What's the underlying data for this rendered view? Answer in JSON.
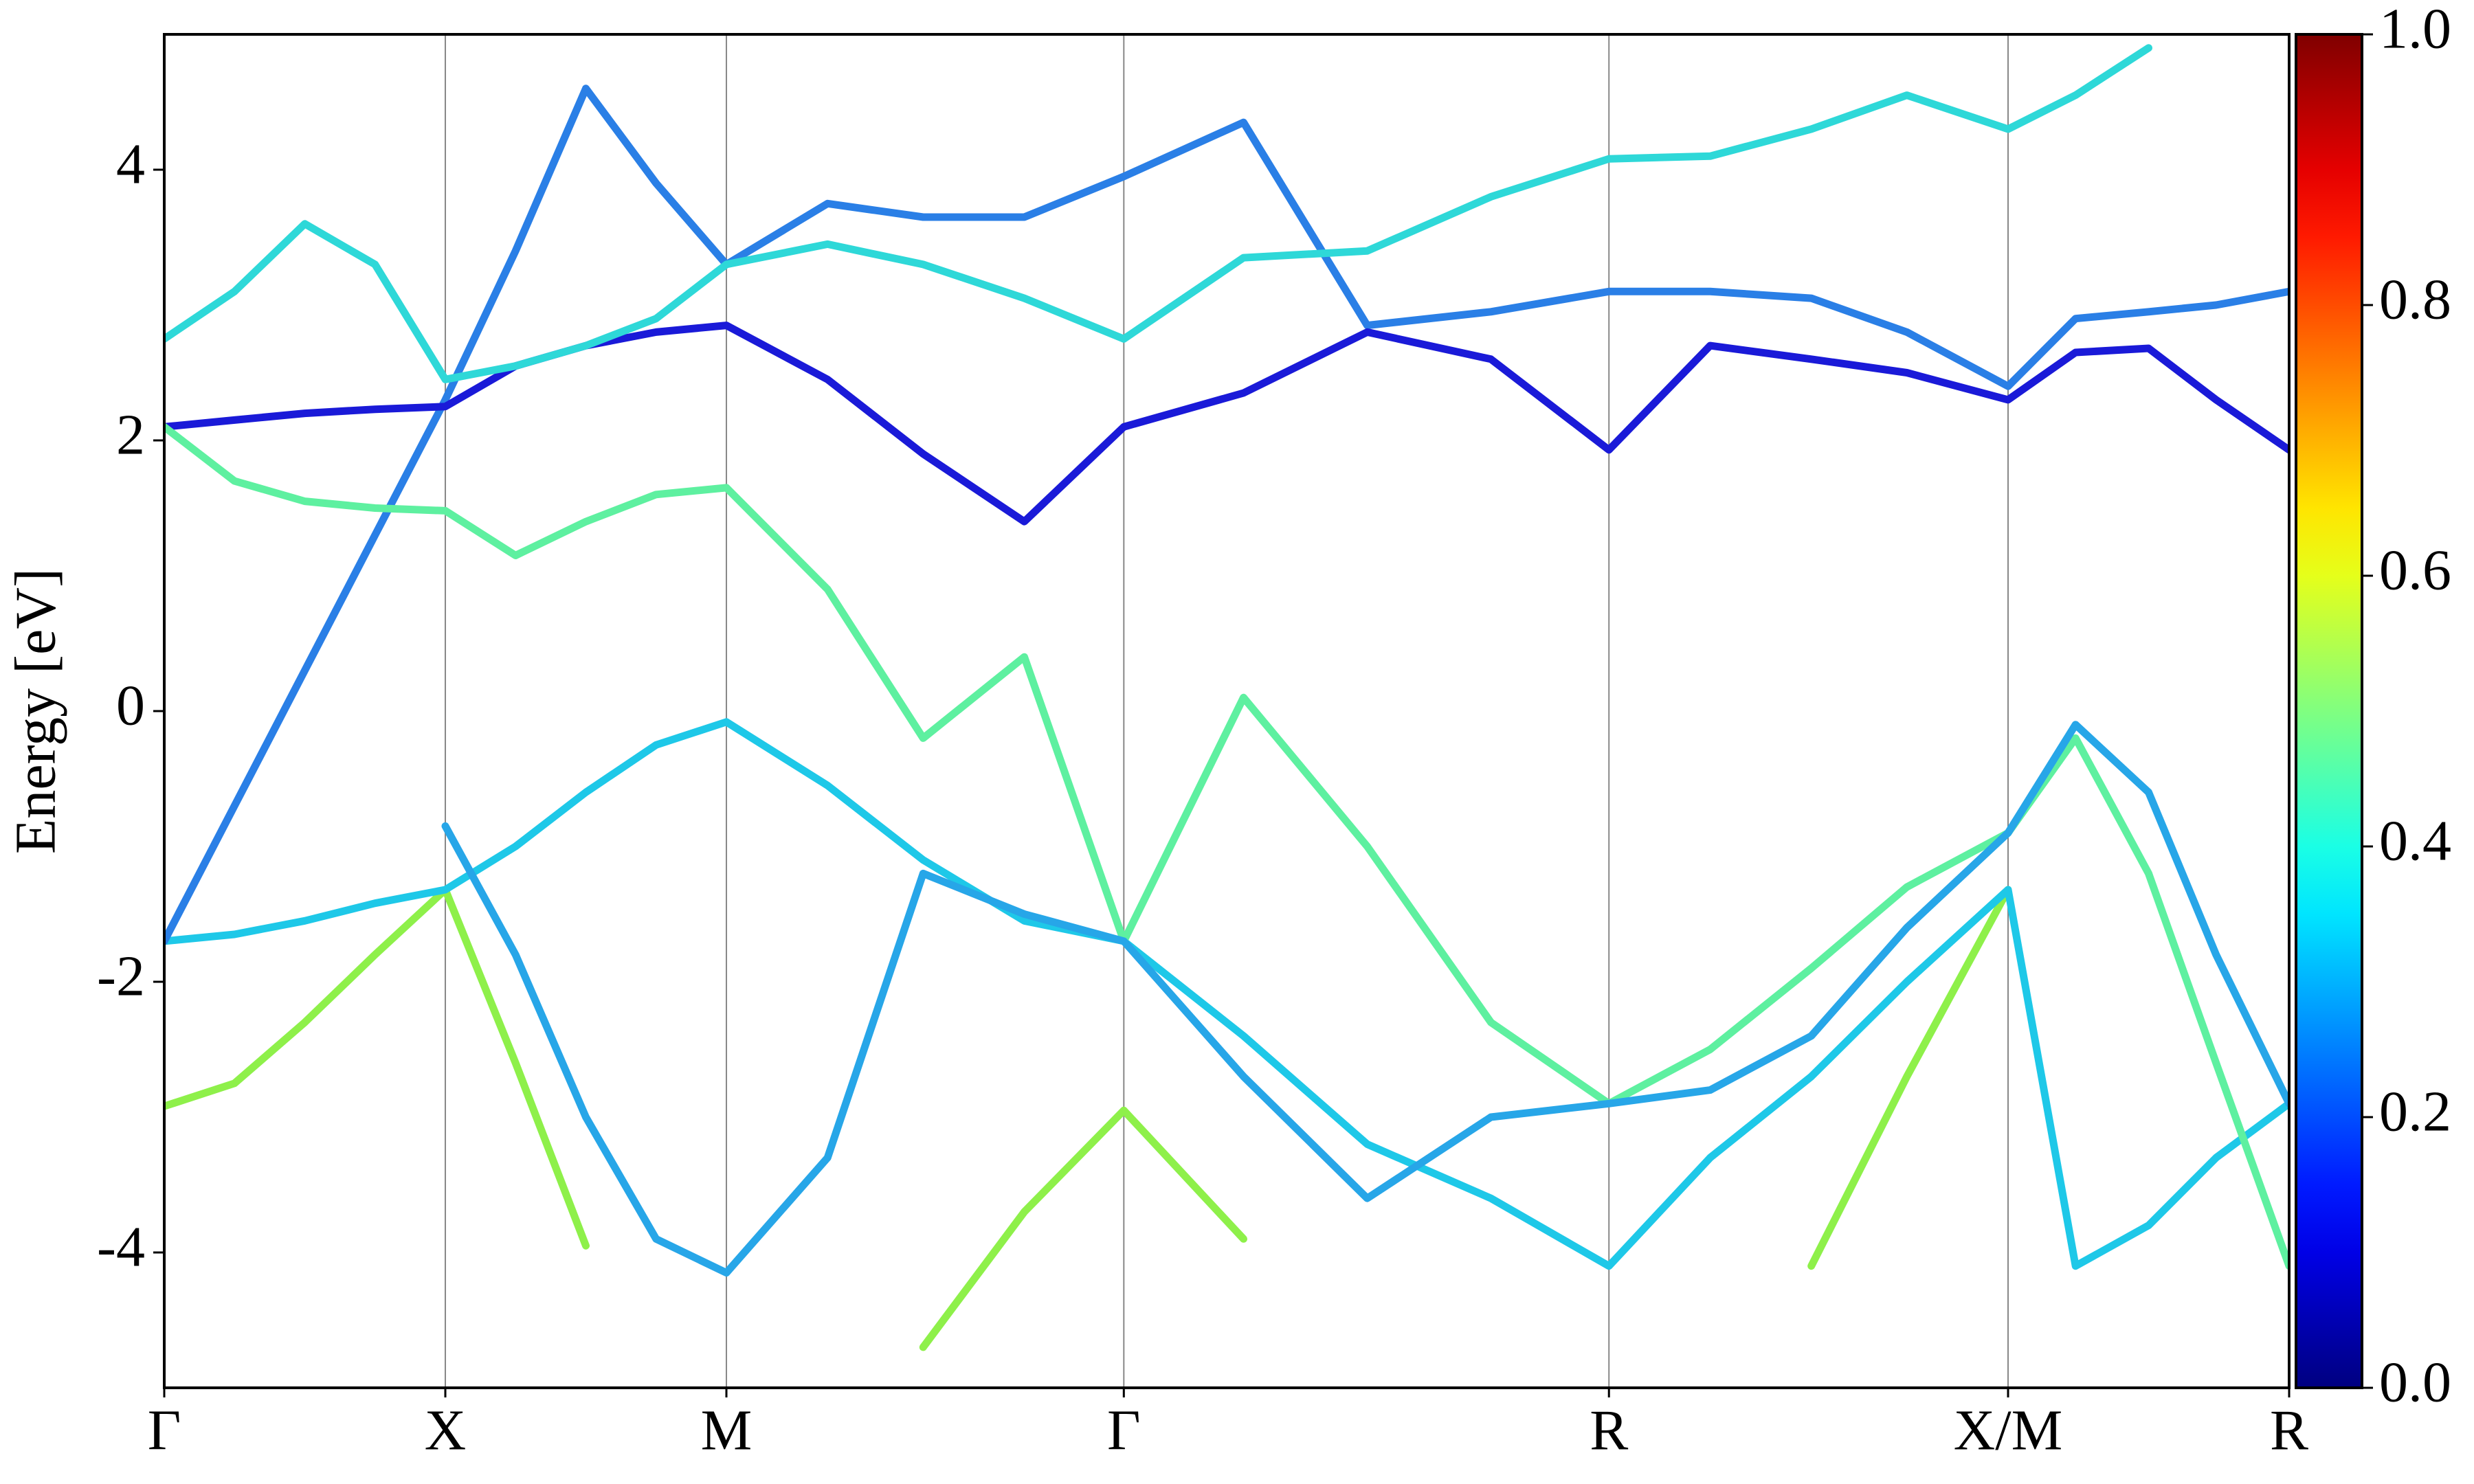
{
  "chart_data": {
    "type": "line",
    "ylabel": "Energy [eV]",
    "xlim": [
      0,
      3.78
    ],
    "xticks": [
      {
        "value": 0,
        "label": "Γ"
      },
      {
        "value": 0.5,
        "label": "X"
      },
      {
        "value": 1.0,
        "label": "M"
      },
      {
        "value": 1.707,
        "label": "Γ"
      },
      {
        "value": 2.57,
        "label": "R"
      },
      {
        "value": 3.28,
        "label": "X/M"
      },
      {
        "value": 3.78,
        "label": "R"
      }
    ],
    "ylim": [
      -5,
      5
    ],
    "yticks": [
      -4,
      -2,
      0,
      2,
      4
    ],
    "grid": "x",
    "x": [
      0,
      0.125,
      0.25,
      0.375,
      0.5,
      0.625,
      0.75,
      0.875,
      1.0,
      1.18,
      1.35,
      1.53,
      1.707,
      1.92,
      2.14,
      2.36,
      2.57,
      2.75,
      2.93,
      3.1,
      3.28,
      3.4,
      3.53,
      3.65,
      3.78
    ],
    "series": [
      {
        "color": "#8ef04a",
        "values": [
          -2.92,
          -2.75,
          -2.3,
          -1.8,
          -1.32,
          -2.6,
          -3.95,
          null,
          null,
          null,
          -4.7,
          -3.7,
          -2.95,
          -3.9,
          null,
          null,
          null,
          null,
          -4.1,
          -2.7,
          -1.32,
          null,
          null,
          null,
          null
        ]
      },
      {
        "color": "#1ec8e8",
        "values": [
          -1.7,
          -1.65,
          -1.55,
          -1.42,
          -1.32,
          -1.0,
          -0.6,
          -0.25,
          -0.08,
          -0.55,
          -1.1,
          -1.55,
          -1.7,
          -2.4,
          -3.2,
          -3.6,
          -4.1,
          -3.3,
          -2.7,
          -2.0,
          -1.32,
          -4.1,
          -3.8,
          -3.3,
          -2.9
        ]
      },
      {
        "color": "#2a7fe6",
        "values": [
          -1.7,
          -0.7,
          0.3,
          1.3,
          2.3,
          3.4,
          4.6,
          3.9,
          3.3,
          3.75,
          3.65,
          3.65,
          3.95,
          4.35,
          2.85,
          2.95,
          3.1,
          3.1,
          3.05,
          2.8,
          2.4,
          2.9,
          2.95,
          3.0,
          3.1
        ]
      },
      {
        "color": "#1a1ad8",
        "values": [
          2.1,
          2.15,
          2.2,
          2.23,
          2.25,
          2.55,
          2.7,
          2.8,
          2.85,
          2.45,
          1.9,
          1.4,
          2.1,
          2.35,
          2.8,
          2.6,
          1.93,
          2.7,
          2.6,
          2.5,
          2.3,
          2.65,
          2.68,
          2.3,
          1.93
        ]
      },
      {
        "color": "#2ed8d8",
        "values": [
          2.75,
          3.1,
          3.6,
          3.3,
          2.45,
          2.55,
          2.7,
          2.9,
          3.3,
          3.45,
          3.3,
          3.05,
          2.75,
          3.35,
          3.4,
          3.8,
          4.08,
          4.1,
          4.3,
          4.55,
          4.3,
          4.55,
          4.9,
          null,
          null
        ]
      },
      {
        "color": "#5ef0a0",
        "values": [
          2.1,
          1.7,
          1.55,
          1.5,
          1.48,
          1.15,
          1.4,
          1.6,
          1.65,
          0.9,
          -0.2,
          0.4,
          -1.7,
          0.1,
          -1.0,
          -2.3,
          -2.9,
          -2.5,
          -1.9,
          -1.3,
          -0.9,
          -0.2,
          -1.2,
          -2.6,
          -4.1
        ]
      },
      {
        "color": "#27a6e8",
        "values": [
          null,
          null,
          null,
          null,
          -0.85,
          -1.8,
          -3.0,
          -3.9,
          -4.15,
          -3.3,
          -1.2,
          -1.5,
          -1.7,
          -2.7,
          -3.6,
          -3.0,
          -2.9,
          -2.8,
          -2.4,
          -1.6,
          -0.9,
          -0.1,
          -0.6,
          -1.8,
          -2.9
        ]
      }
    ],
    "colorbar": {
      "colormap": "jet",
      "clim": [
        0,
        1
      ],
      "ticks": [
        {
          "value": 0,
          "label": "0.0"
        },
        0.2,
        0.4,
        0.6,
        0.8,
        {
          "value": 1,
          "label": "1.0"
        }
      ]
    }
  }
}
